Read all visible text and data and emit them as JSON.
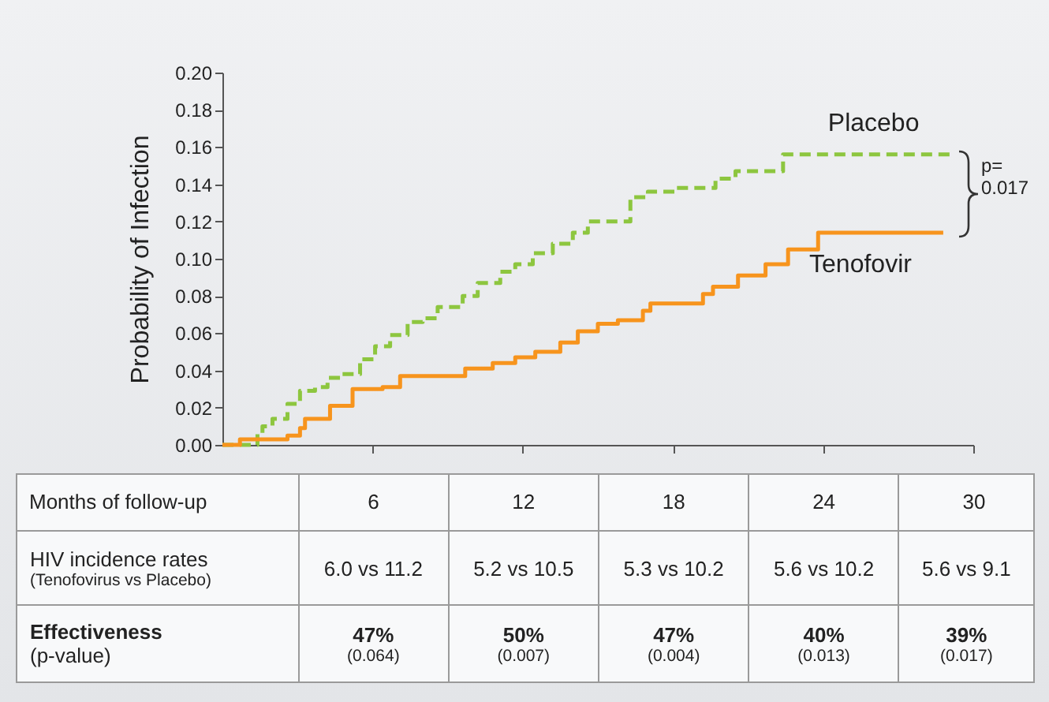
{
  "chart_data": {
    "type": "step",
    "xlabel": "Months of follow-up",
    "ylabel": "Probability of Infection",
    "xlim": [
      0,
      30
    ],
    "xticks": [
      6,
      12,
      18,
      24,
      30
    ],
    "ylim": [
      0,
      0.2
    ],
    "yticks": [
      {
        "value": 0,
        "label": "0.00"
      },
      {
        "value": 0.02,
        "label": "0.02"
      },
      {
        "value": 0.04,
        "label": "0.04"
      },
      {
        "value": 0.06,
        "label": "0.06"
      },
      {
        "value": 0.08,
        "label": "0.08"
      },
      {
        "value": 0.1,
        "label": "0.10"
      },
      {
        "value": 0.12,
        "label": "0.12"
      },
      {
        "value": 0.14,
        "label": "0.14"
      },
      {
        "value": 0.16,
        "label": "0.16"
      },
      {
        "value": 0.18,
        "label": "0.18"
      },
      {
        "value": 0.2,
        "label": "0.20"
      }
    ],
    "grid": false,
    "legend": false,
    "marker": "none",
    "series": [
      {
        "name": "Placebo",
        "color": "#8dc63f",
        "line_style": "dashed",
        "x": [
          0,
          1.4,
          1.6,
          2.0,
          2.6,
          3.1,
          3.7,
          4.2,
          4.8,
          5.5,
          6.1,
          6.7,
          7.4,
          8.0,
          8.6,
          9.6,
          10.2,
          11.1,
          11.7,
          12.4,
          13.2,
          14.0,
          14.6,
          16.3,
          17.0,
          18.1,
          19.7,
          20.5,
          22.4,
          29.1
        ],
        "values": [
          0,
          0.006,
          0.01,
          0.014,
          0.022,
          0.029,
          0.031,
          0.036,
          0.038,
          0.046,
          0.053,
          0.059,
          0.066,
          0.068,
          0.074,
          0.08,
          0.087,
          0.093,
          0.097,
          0.103,
          0.108,
          0.114,
          0.12,
          0.133,
          0.136,
          0.138,
          0.143,
          0.147,
          0.156,
          0.156
        ]
      },
      {
        "name": "Tenofovir",
        "color": "#f7941d",
        "line_style": "solid",
        "x": [
          0,
          0.7,
          2.6,
          3.1,
          3.3,
          4.3,
          5.2,
          6.4,
          7.1,
          9.7,
          10.8,
          11.7,
          12.5,
          13.5,
          14.2,
          15.0,
          15.8,
          16.8,
          17.1,
          19.2,
          19.6,
          20.6,
          21.7,
          22.6,
          23.8,
          28.8
        ],
        "values": [
          0,
          0.003,
          0.005,
          0.009,
          0.014,
          0.021,
          0.03,
          0.031,
          0.037,
          0.041,
          0.044,
          0.047,
          0.05,
          0.055,
          0.061,
          0.065,
          0.067,
          0.072,
          0.076,
          0.081,
          0.085,
          0.091,
          0.097,
          0.105,
          0.114,
          0.114
        ]
      }
    ],
    "annotations": [
      "HIV incidence rates",
      "(Tenofovirus vs Placebo)",
      "6.0 vs 11.2",
      "5.2 vs 10.5",
      "5.3 vs 10.2",
      "5.6 vs 10.2",
      "5.6 vs 9.1",
      "Effectiveness",
      "(p-value)",
      "47%",
      "(0.064)",
      "50%",
      "(0.007)",
      "47%",
      "(0.004)",
      "40%",
      "(0.013)",
      "39%",
      "(0.017)",
      "p= 0.017"
    ]
  }
}
